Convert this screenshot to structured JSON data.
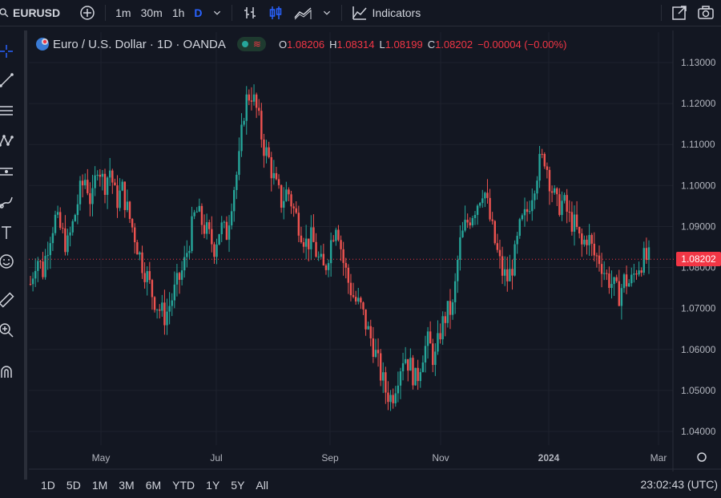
{
  "topbar": {
    "symbol": "EURUSD",
    "intervals": [
      "1m",
      "30m",
      "1h",
      "D"
    ],
    "active_interval": "D",
    "indicators_label": "Indicators"
  },
  "legend": {
    "title": "Euro / U.S. Dollar · 1D · OANDA",
    "o_key": "O",
    "o_val": "1.08206",
    "h_key": "H",
    "h_val": "1.08314",
    "l_key": "L",
    "l_val": "1.08199",
    "c_key": "C",
    "c_val": "1.08202",
    "change": "−0.00004 (−0.00%)"
  },
  "price_scale": {
    "labels": [
      "1.13000",
      "1.12000",
      "1.11000",
      "1.10000",
      "1.09000",
      "1.08000",
      "1.07000",
      "1.06000",
      "1.05000",
      "1.04000"
    ],
    "last_price": "1.08202"
  },
  "time_scale": {
    "labels": [
      "May",
      "Jul",
      "Sep",
      "Nov",
      "2024",
      "Mar"
    ]
  },
  "bottombar": {
    "ranges": [
      "1D",
      "5D",
      "1M",
      "3M",
      "6M",
      "YTD",
      "1Y",
      "5Y",
      "All"
    ],
    "clock": "23:02:43 (UTC)"
  },
  "colors": {
    "up": "#26a69a",
    "down": "#ef5350",
    "bg": "#131722",
    "grid": "#1e222d",
    "text": "#b2b5be"
  },
  "chart_data": {
    "type": "candlestick",
    "ylim": [
      1.04,
      1.13
    ],
    "ticks_y": [
      1.13,
      1.12,
      1.11,
      1.1,
      1.09,
      1.08,
      1.07,
      1.06,
      1.05,
      1.04
    ],
    "closes": [
      1.076,
      1.083,
      1.079,
      1.087,
      1.092,
      1.089,
      1.085,
      1.091,
      1.098,
      1.102,
      1.095,
      1.106,
      1.1,
      1.104,
      1.096,
      1.099,
      1.093,
      1.088,
      1.082,
      1.078,
      1.073,
      1.07,
      1.068,
      1.072,
      1.076,
      1.08,
      1.087,
      1.094,
      1.091,
      1.088,
      1.085,
      1.09,
      1.088,
      1.098,
      1.105,
      1.12,
      1.123,
      1.118,
      1.11,
      1.106,
      1.1,
      1.096,
      1.099,
      1.094,
      1.09,
      1.086,
      1.087,
      1.082,
      1.079,
      1.086,
      1.092,
      1.082,
      1.076,
      1.072,
      1.07,
      1.065,
      1.061,
      1.055,
      1.05,
      1.048,
      1.054,
      1.059,
      1.056,
      1.052,
      1.059,
      1.062,
      1.057,
      1.065,
      1.069,
      1.07,
      1.085,
      1.09,
      1.093,
      1.096,
      1.1,
      1.092,
      1.085,
      1.079,
      1.077,
      1.082,
      1.09,
      1.093,
      1.099,
      1.105,
      1.107,
      1.1,
      1.095,
      1.096,
      1.092,
      1.09,
      1.085,
      1.088,
      1.083,
      1.082,
      1.078,
      1.076,
      1.073,
      1.077,
      1.076,
      1.08,
      1.082,
      1.082
    ]
  }
}
